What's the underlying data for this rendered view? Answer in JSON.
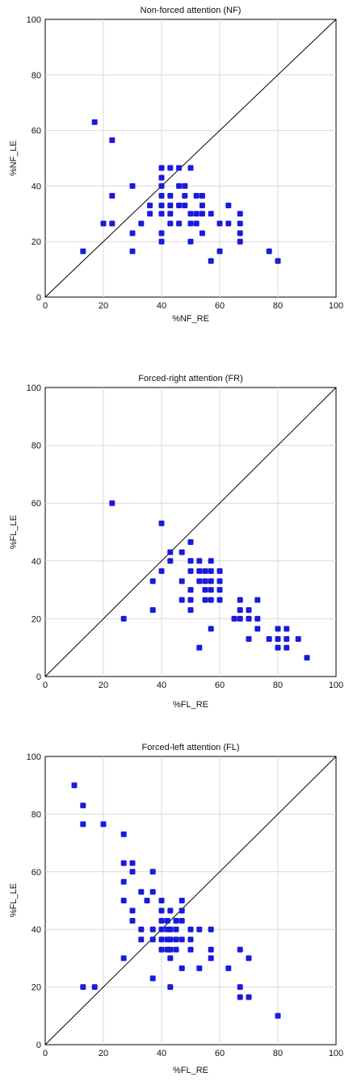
{
  "chart_data": [
    {
      "type": "scatter",
      "title": "Non-forced attention (NF)",
      "xlabel": "%NF_RE",
      "ylabel": "%NF_LE",
      "xlim": [
        0,
        100
      ],
      "ylim": [
        0,
        100
      ],
      "xticks": [
        "0",
        "20",
        "40",
        "60",
        "80",
        "100"
      ],
      "yticks": [
        "0",
        "20",
        "40",
        "60",
        "80",
        "100"
      ],
      "grid": true,
      "diagonal": "y = x",
      "marker_color": "#1a1adb",
      "points": [
        [
          13,
          16.5
        ],
        [
          17,
          63
        ],
        [
          20,
          26.5
        ],
        [
          23,
          56.5
        ],
        [
          23,
          36.5
        ],
        [
          23,
          26.5
        ],
        [
          30,
          40
        ],
        [
          30,
          23
        ],
        [
          30,
          16.5
        ],
        [
          33,
          26.5
        ],
        [
          36,
          30
        ],
        [
          36,
          33
        ],
        [
          40,
          46.5
        ],
        [
          40,
          43
        ],
        [
          40,
          40
        ],
        [
          40,
          36.5
        ],
        [
          40,
          33
        ],
        [
          40,
          30
        ],
        [
          40,
          23
        ],
        [
          40,
          20
        ],
        [
          43,
          46.5
        ],
        [
          43,
          36.5
        ],
        [
          43,
          33
        ],
        [
          43,
          30
        ],
        [
          43,
          26.5
        ],
        [
          46,
          46.5
        ],
        [
          46,
          40
        ],
        [
          46,
          33
        ],
        [
          46,
          26.5
        ],
        [
          48,
          40
        ],
        [
          48,
          36.5
        ],
        [
          48,
          33
        ],
        [
          50,
          46.5
        ],
        [
          50,
          30
        ],
        [
          50,
          26.5
        ],
        [
          50,
          20
        ],
        [
          52,
          36.5
        ],
        [
          52,
          30
        ],
        [
          52,
          26.5
        ],
        [
          54,
          36.5
        ],
        [
          54,
          33
        ],
        [
          54,
          30
        ],
        [
          54,
          23
        ],
        [
          57,
          30
        ],
        [
          57,
          13
        ],
        [
          60,
          26.5
        ],
        [
          60,
          16.5
        ],
        [
          63,
          33
        ],
        [
          63,
          26.5
        ],
        [
          67,
          30
        ],
        [
          67,
          26.5
        ],
        [
          67,
          23
        ],
        [
          67,
          20
        ],
        [
          77,
          16.5
        ],
        [
          80,
          13
        ]
      ]
    },
    {
      "type": "scatter",
      "title": "Forced-right attention (FR)",
      "xlabel": "%FL_RE",
      "ylabel": "%FL_LE",
      "xlim": [
        0,
        100
      ],
      "ylim": [
        0,
        100
      ],
      "xticks": [
        "0",
        "20",
        "40",
        "60",
        "80",
        "100"
      ],
      "yticks": [
        "0",
        "20",
        "40",
        "60",
        "80",
        "100"
      ],
      "grid": true,
      "diagonal": "y = x",
      "marker_color": "#1a1adb",
      "points": [
        [
          23,
          60
        ],
        [
          27,
          20
        ],
        [
          37,
          33
        ],
        [
          37,
          23
        ],
        [
          40,
          53
        ],
        [
          40,
          36.5
        ],
        [
          43,
          43
        ],
        [
          43,
          40
        ],
        [
          47,
          43
        ],
        [
          47,
          33
        ],
        [
          47,
          26.5
        ],
        [
          50,
          46.5
        ],
        [
          50,
          40
        ],
        [
          50,
          36.5
        ],
        [
          50,
          30
        ],
        [
          50,
          26.5
        ],
        [
          50,
          23
        ],
        [
          53,
          40
        ],
        [
          53,
          36.5
        ],
        [
          53,
          33
        ],
        [
          53,
          10
        ],
        [
          55,
          36.5
        ],
        [
          55,
          33
        ],
        [
          55,
          30
        ],
        [
          55,
          26.5
        ],
        [
          57,
          40
        ],
        [
          57,
          36.5
        ],
        [
          57,
          33
        ],
        [
          57,
          30
        ],
        [
          57,
          26.5
        ],
        [
          57,
          16.5
        ],
        [
          60,
          36.5
        ],
        [
          60,
          33
        ],
        [
          60,
          30
        ],
        [
          60,
          26.5
        ],
        [
          65,
          20
        ],
        [
          67,
          26.5
        ],
        [
          67,
          23
        ],
        [
          67,
          20
        ],
        [
          70,
          23
        ],
        [
          70,
          20
        ],
        [
          70,
          13
        ],
        [
          73,
          26.5
        ],
        [
          73,
          20
        ],
        [
          73,
          16.5
        ],
        [
          77,
          13
        ],
        [
          80,
          16.5
        ],
        [
          80,
          13
        ],
        [
          80,
          10
        ],
        [
          83,
          16.5
        ],
        [
          83,
          13
        ],
        [
          83,
          10
        ],
        [
          87,
          13
        ],
        [
          90,
          6.5
        ]
      ]
    },
    {
      "type": "scatter",
      "title": "Forced-left attention (FL)",
      "xlabel": "%FL_RE",
      "ylabel": "%FL_LE",
      "xlim": [
        0,
        100
      ],
      "ylim": [
        0,
        100
      ],
      "xticks": [
        "0",
        "20",
        "40",
        "60",
        "80",
        "100"
      ],
      "yticks": [
        "0",
        "20",
        "40",
        "60",
        "80",
        "100"
      ],
      "grid": true,
      "diagonal": "y = x",
      "marker_color": "#1a1adb",
      "points": [
        [
          10,
          90
        ],
        [
          13,
          83
        ],
        [
          13,
          76.5
        ],
        [
          13,
          20
        ],
        [
          17,
          20
        ],
        [
          20,
          76.5
        ],
        [
          27,
          73
        ],
        [
          27,
          63
        ],
        [
          27,
          56.5
        ],
        [
          27,
          50
        ],
        [
          27,
          30
        ],
        [
          30,
          63
        ],
        [
          30,
          60
        ],
        [
          30,
          46.5
        ],
        [
          30,
          43
        ],
        [
          33,
          53
        ],
        [
          33,
          40
        ],
        [
          33,
          36.5
        ],
        [
          35,
          50
        ],
        [
          37,
          60
        ],
        [
          37,
          53
        ],
        [
          37,
          40
        ],
        [
          37,
          36.5
        ],
        [
          37,
          23
        ],
        [
          40,
          50
        ],
        [
          40,
          46.5
        ],
        [
          40,
          43
        ],
        [
          40,
          40
        ],
        [
          40,
          36.5
        ],
        [
          40,
          33
        ],
        [
          42,
          43
        ],
        [
          42,
          40
        ],
        [
          42,
          36.5
        ],
        [
          42,
          33
        ],
        [
          43,
          46.5
        ],
        [
          43,
          40
        ],
        [
          43,
          36.5
        ],
        [
          43,
          33
        ],
        [
          43,
          30
        ],
        [
          43,
          20
        ],
        [
          45,
          43
        ],
        [
          45,
          40
        ],
        [
          45,
          36.5
        ],
        [
          45,
          33
        ],
        [
          47,
          50
        ],
        [
          47,
          46.5
        ],
        [
          47,
          43
        ],
        [
          47,
          36.5
        ],
        [
          47,
          26.5
        ],
        [
          50,
          40
        ],
        [
          50,
          36.5
        ],
        [
          50,
          33
        ],
        [
          53,
          40
        ],
        [
          53,
          26.5
        ],
        [
          57,
          40
        ],
        [
          57,
          33
        ],
        [
          57,
          30
        ],
        [
          63,
          26.5
        ],
        [
          67,
          33
        ],
        [
          67,
          20
        ],
        [
          67,
          16.5
        ],
        [
          70,
          30
        ],
        [
          70,
          16.5
        ],
        [
          80,
          10
        ]
      ]
    }
  ]
}
